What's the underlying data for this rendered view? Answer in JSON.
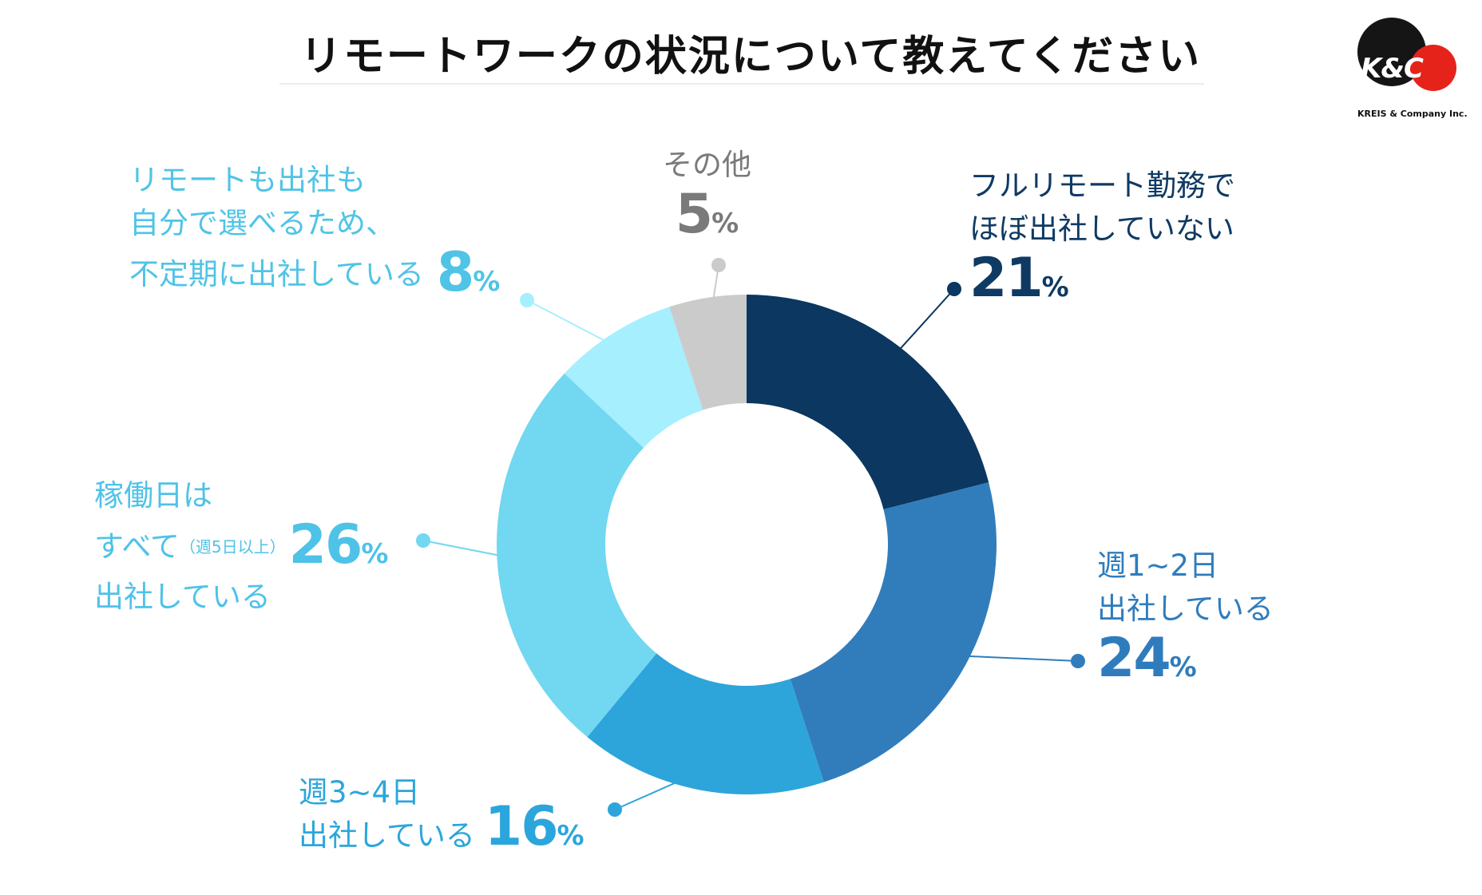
{
  "title": "リモートワークの状況について教えてください",
  "logo": {
    "mark": "K&C",
    "company": "KREIS & Company Inc."
  },
  "chart_data": {
    "type": "pie",
    "donut": true,
    "title": "リモートワークの状況について教えてください",
    "unit": "%",
    "slices": [
      {
        "key": "full_remote",
        "label_lines": [
          "フルリモート勤務で",
          "ほぼ出社していない"
        ],
        "value": 21,
        "color": "#0b3760"
      },
      {
        "key": "week_1_2",
        "label_lines": [
          "週1~2日",
          "出社している"
        ],
        "value": 24,
        "color": "#317dbb"
      },
      {
        "key": "week_3_4",
        "label_lines": [
          "週3~4日",
          "出社している"
        ],
        "value": 16,
        "color": "#2da5db"
      },
      {
        "key": "every_day",
        "label_lines": [
          "稼働日は",
          "すべて",
          "出社している"
        ],
        "label_note": "（週5日以上）",
        "value": 26,
        "color": "#72d7f0"
      },
      {
        "key": "flexible",
        "label_lines": [
          "リモートも出社も",
          "自分で選べるため、",
          "不定期に出社している"
        ],
        "value": 8,
        "color": "#a6efff"
      },
      {
        "key": "other",
        "label_lines": [
          "その他"
        ],
        "value": 5,
        "color": "#cbcbcb"
      }
    ]
  }
}
